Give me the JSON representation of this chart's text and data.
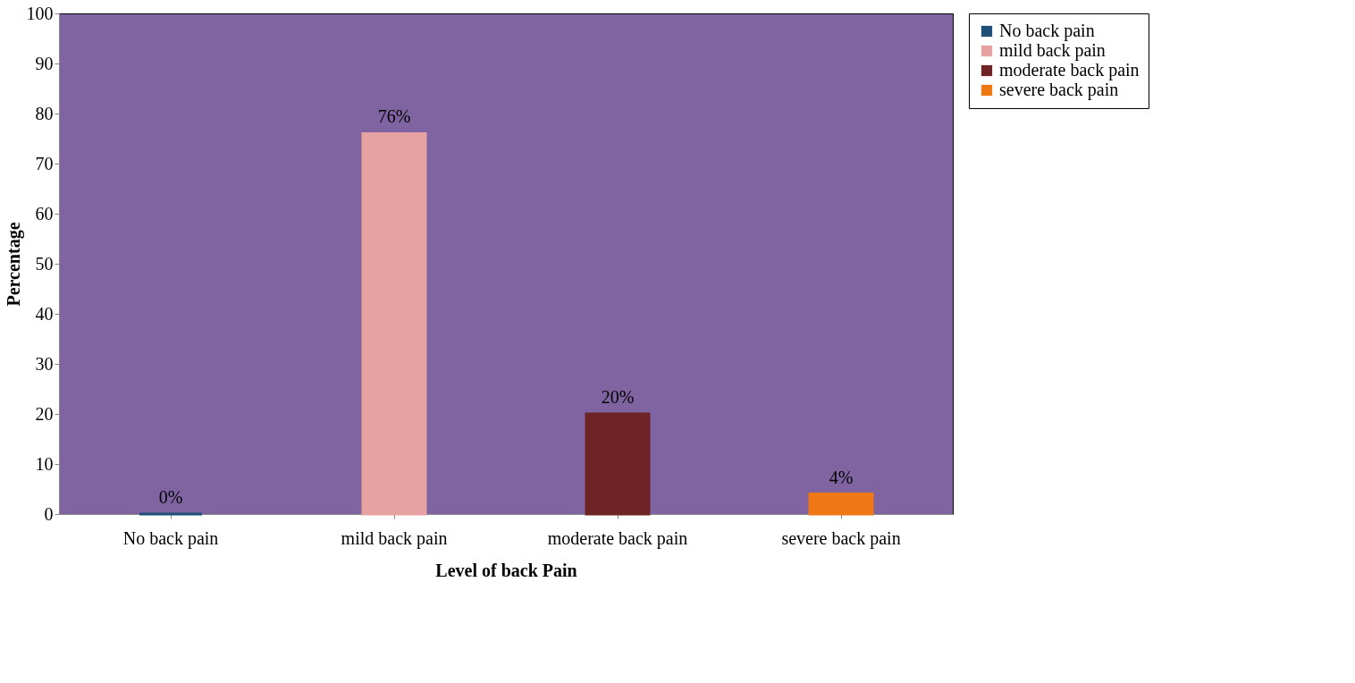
{
  "chart_data": {
    "type": "bar",
    "categories": [
      "No back pain",
      "mild back pain",
      "moderate back pain",
      "severe back pain"
    ],
    "series": [
      {
        "name": "No back pain",
        "color": "#1f4e79",
        "values": [
          0,
          null,
          null,
          null
        ],
        "value_labels": [
          "0%",
          null,
          null,
          null
        ]
      },
      {
        "name": "mild back pain",
        "color": "#e6a1a1",
        "values": [
          null,
          76,
          null,
          null
        ],
        "value_labels": [
          null,
          "76%",
          null,
          null
        ]
      },
      {
        "name": "moderate back pain",
        "color": "#6e2424",
        "values": [
          null,
          null,
          20,
          null
        ],
        "value_labels": [
          null,
          null,
          "20%",
          null
        ]
      },
      {
        "name": "severe back pain",
        "color": "#f07814",
        "values": [
          null,
          null,
          null,
          4
        ],
        "value_labels": [
          null,
          null,
          null,
          "4%"
        ]
      }
    ],
    "xlabel": "Level of  back  Pain",
    "ylabel": "Percentage",
    "ylim": [
      0,
      100
    ],
    "yticks": [
      0,
      10,
      20,
      30,
      40,
      50,
      60,
      70,
      80,
      90,
      100
    ],
    "legend": "right",
    "grid": false
  }
}
